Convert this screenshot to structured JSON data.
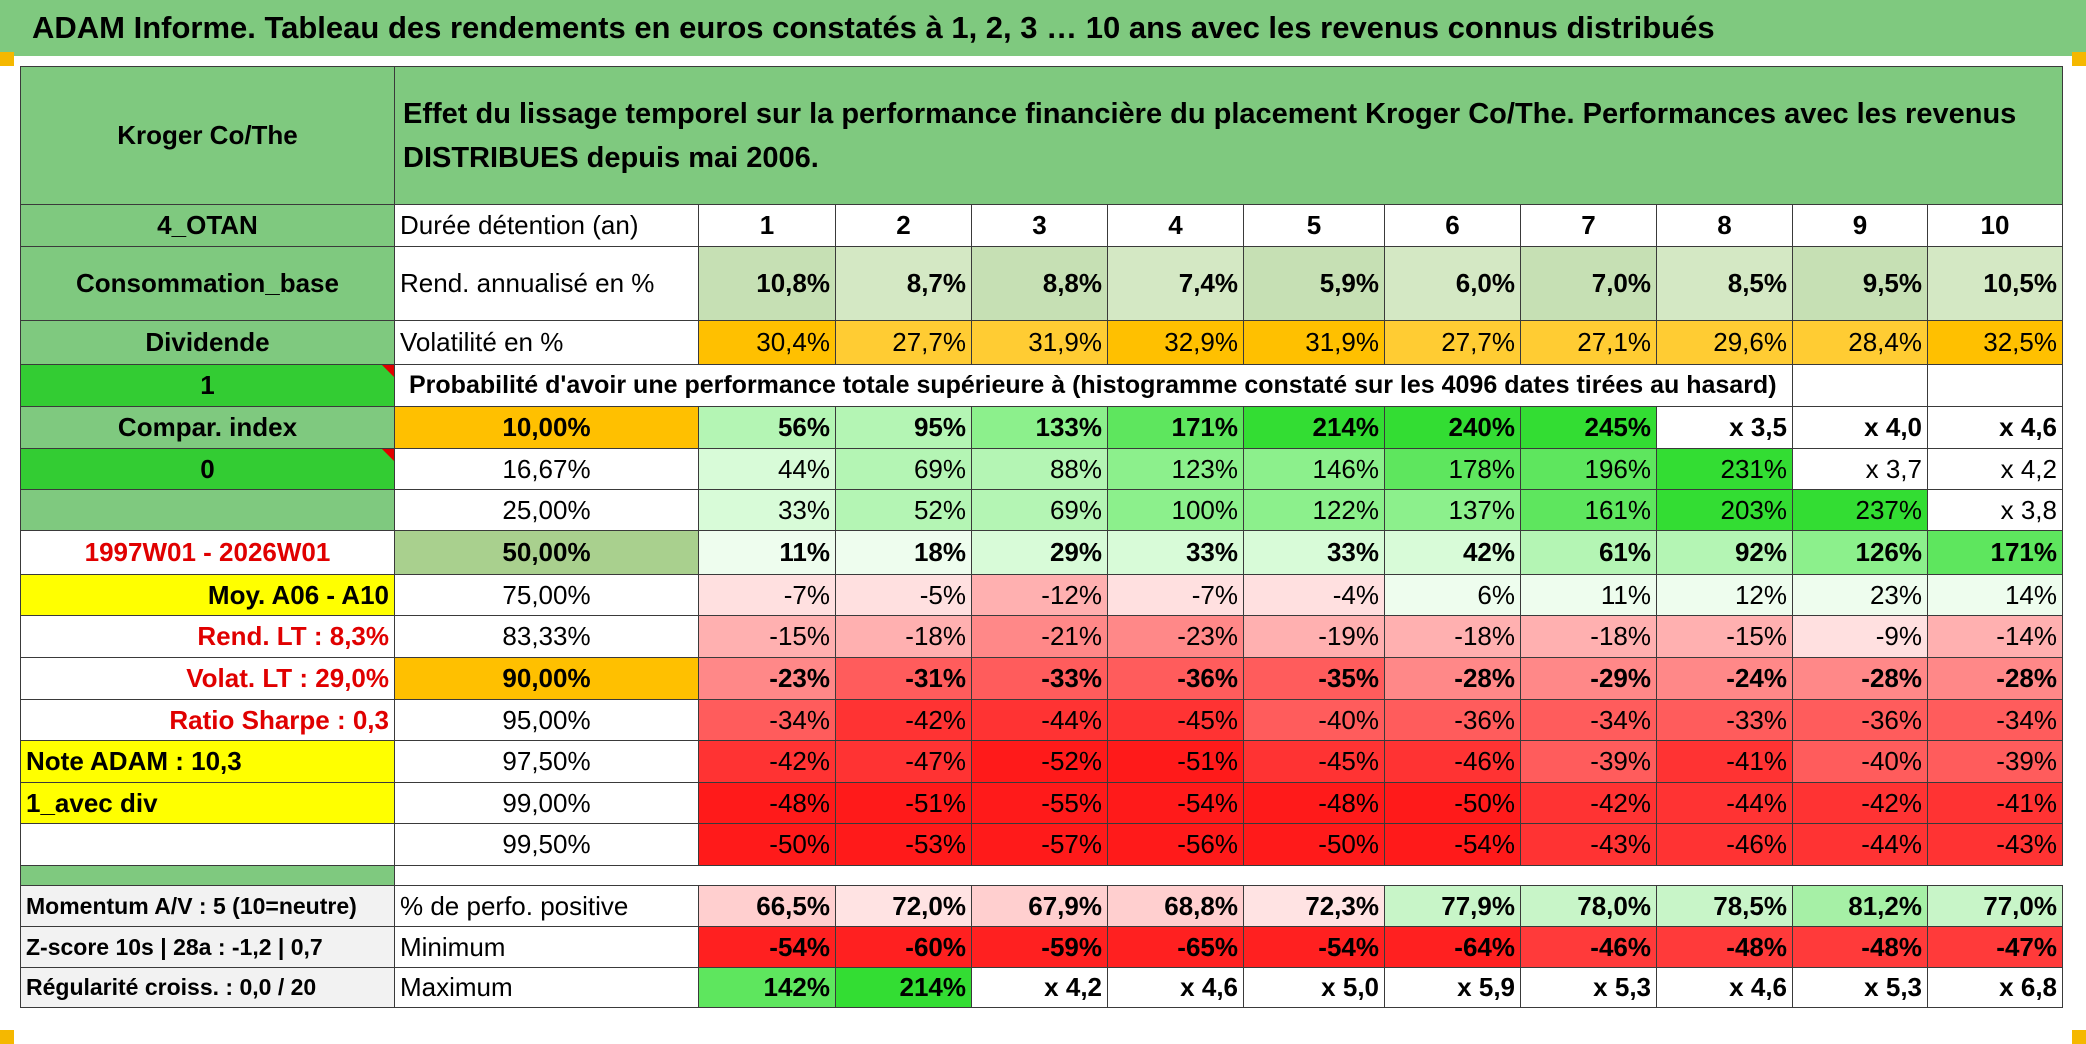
{
  "title": "ADAM Informe. Tableau des rendements en euros constatés à 1, 2, 3 … 10 ans avec les revenus connus distribués",
  "header": {
    "left": "Kroger Co/The",
    "description": "Effet du lissage temporel sur la performance financière du placement Kroger Co/The. Performances avec les revenus DISTRIBUES depuis mai 2006."
  },
  "colors": {
    "header_green": "#7fc97f",
    "bright_green": "#33cc33",
    "orange": "#ffc000",
    "yellow": "#ffff00",
    "red": "#ff0000"
  },
  "info_rows": [
    {
      "left": "4_OTAN",
      "label": "Durée détention (an)",
      "values": [
        "1",
        "2",
        "3",
        "4",
        "5",
        "6",
        "7",
        "8",
        "9",
        "10"
      ]
    },
    {
      "left": "Consommation_base",
      "label": "Rend. annualisé en %",
      "values": [
        "10,8%",
        "8,7%",
        "8,8%",
        "7,4%",
        "5,9%",
        "6,0%",
        "7,0%",
        "8,5%",
        "9,5%",
        "10,5%"
      ]
    },
    {
      "left": "Dividende",
      "label": "Volatilité en %",
      "values": [
        "30,4%",
        "27,7%",
        "31,9%",
        "32,9%",
        "31,9%",
        "27,7%",
        "27,1%",
        "29,6%",
        "28,4%",
        "32,5%"
      ]
    }
  ],
  "prob_row": {
    "left": "1",
    "text": "Probabilité d'avoir une performance totale supérieure à (histogramme constaté sur les 4096 dates tirées au hasard)"
  },
  "perf_rows": [
    {
      "left": "Compar. index",
      "pct": "10,00%",
      "values": [
        "56%",
        "95%",
        "133%",
        "171%",
        "214%",
        "240%",
        "245%",
        "x 3,5",
        "x 4,0",
        "x 4,6"
      ]
    },
    {
      "left": "0",
      "pct": "16,67%",
      "values": [
        "44%",
        "69%",
        "88%",
        "123%",
        "146%",
        "178%",
        "196%",
        "231%",
        "x 3,7",
        "x 4,2"
      ]
    },
    {
      "left": "",
      "pct": "25,00%",
      "values": [
        "33%",
        "52%",
        "69%",
        "100%",
        "122%",
        "137%",
        "161%",
        "203%",
        "237%",
        "x 3,8"
      ]
    },
    {
      "left": "1997W01 - 2026W01",
      "pct": "50,00%",
      "values": [
        "11%",
        "18%",
        "29%",
        "33%",
        "33%",
        "42%",
        "61%",
        "92%",
        "126%",
        "171%"
      ]
    },
    {
      "left": "Moy. A06 - A10",
      "pct": "75,00%",
      "values": [
        "-7%",
        "-5%",
        "-12%",
        "-7%",
        "-4%",
        "6%",
        "11%",
        "12%",
        "23%",
        "14%"
      ]
    },
    {
      "left": "Rend. LT :   8,3%",
      "pct": "83,33%",
      "values": [
        "-15%",
        "-18%",
        "-21%",
        "-23%",
        "-19%",
        "-18%",
        "-18%",
        "-15%",
        "-9%",
        "-14%"
      ]
    },
    {
      "left": "Volat. LT :   29,0%",
      "pct": "90,00%",
      "values": [
        "-23%",
        "-31%",
        "-33%",
        "-36%",
        "-35%",
        "-28%",
        "-29%",
        "-24%",
        "-28%",
        "-28%"
      ]
    },
    {
      "left": "Ratio Sharpe :    0,3",
      "pct": "95,00%",
      "values": [
        "-34%",
        "-42%",
        "-44%",
        "-45%",
        "-40%",
        "-36%",
        "-34%",
        "-33%",
        "-36%",
        "-34%"
      ]
    },
    {
      "left": "Note ADAM : 10,3",
      "pct": "97,50%",
      "values": [
        "-42%",
        "-47%",
        "-52%",
        "-51%",
        "-45%",
        "-46%",
        "-39%",
        "-41%",
        "-40%",
        "-39%"
      ]
    },
    {
      "left": "1_avec div",
      "pct": "99,00%",
      "values": [
        "-48%",
        "-51%",
        "-55%",
        "-54%",
        "-48%",
        "-50%",
        "-42%",
        "-44%",
        "-42%",
        "-41%"
      ]
    },
    {
      "left": "",
      "pct": "99,50%",
      "values": [
        "-50%",
        "-53%",
        "-57%",
        "-56%",
        "-50%",
        "-54%",
        "-43%",
        "-46%",
        "-44%",
        "-43%"
      ]
    }
  ],
  "stat_rows": [
    {
      "left": "Momentum A/V : 5 (10=neutre)",
      "label": "% de perfo. positive",
      "values": [
        "66,5%",
        "72,0%",
        "67,9%",
        "68,8%",
        "72,3%",
        "77,9%",
        "78,0%",
        "78,5%",
        "81,2%",
        "77,0%"
      ]
    },
    {
      "left": "Z-score 10s | 28a : -1,2 | 0,7",
      "label": "Minimum",
      "values": [
        "-54%",
        "-60%",
        "-59%",
        "-65%",
        "-54%",
        "-64%",
        "-46%",
        "-48%",
        "-48%",
        "-47%"
      ]
    },
    {
      "left": "Régularité croiss. : 0,0 / 20",
      "label": "Maximum",
      "values": [
        "142%",
        "214%",
        "x 4,2",
        "x 4,6",
        "x 5,0",
        "x 5,9",
        "x 5,3",
        "x 4,6",
        "x 5,3",
        "x 6,8"
      ]
    }
  ]
}
